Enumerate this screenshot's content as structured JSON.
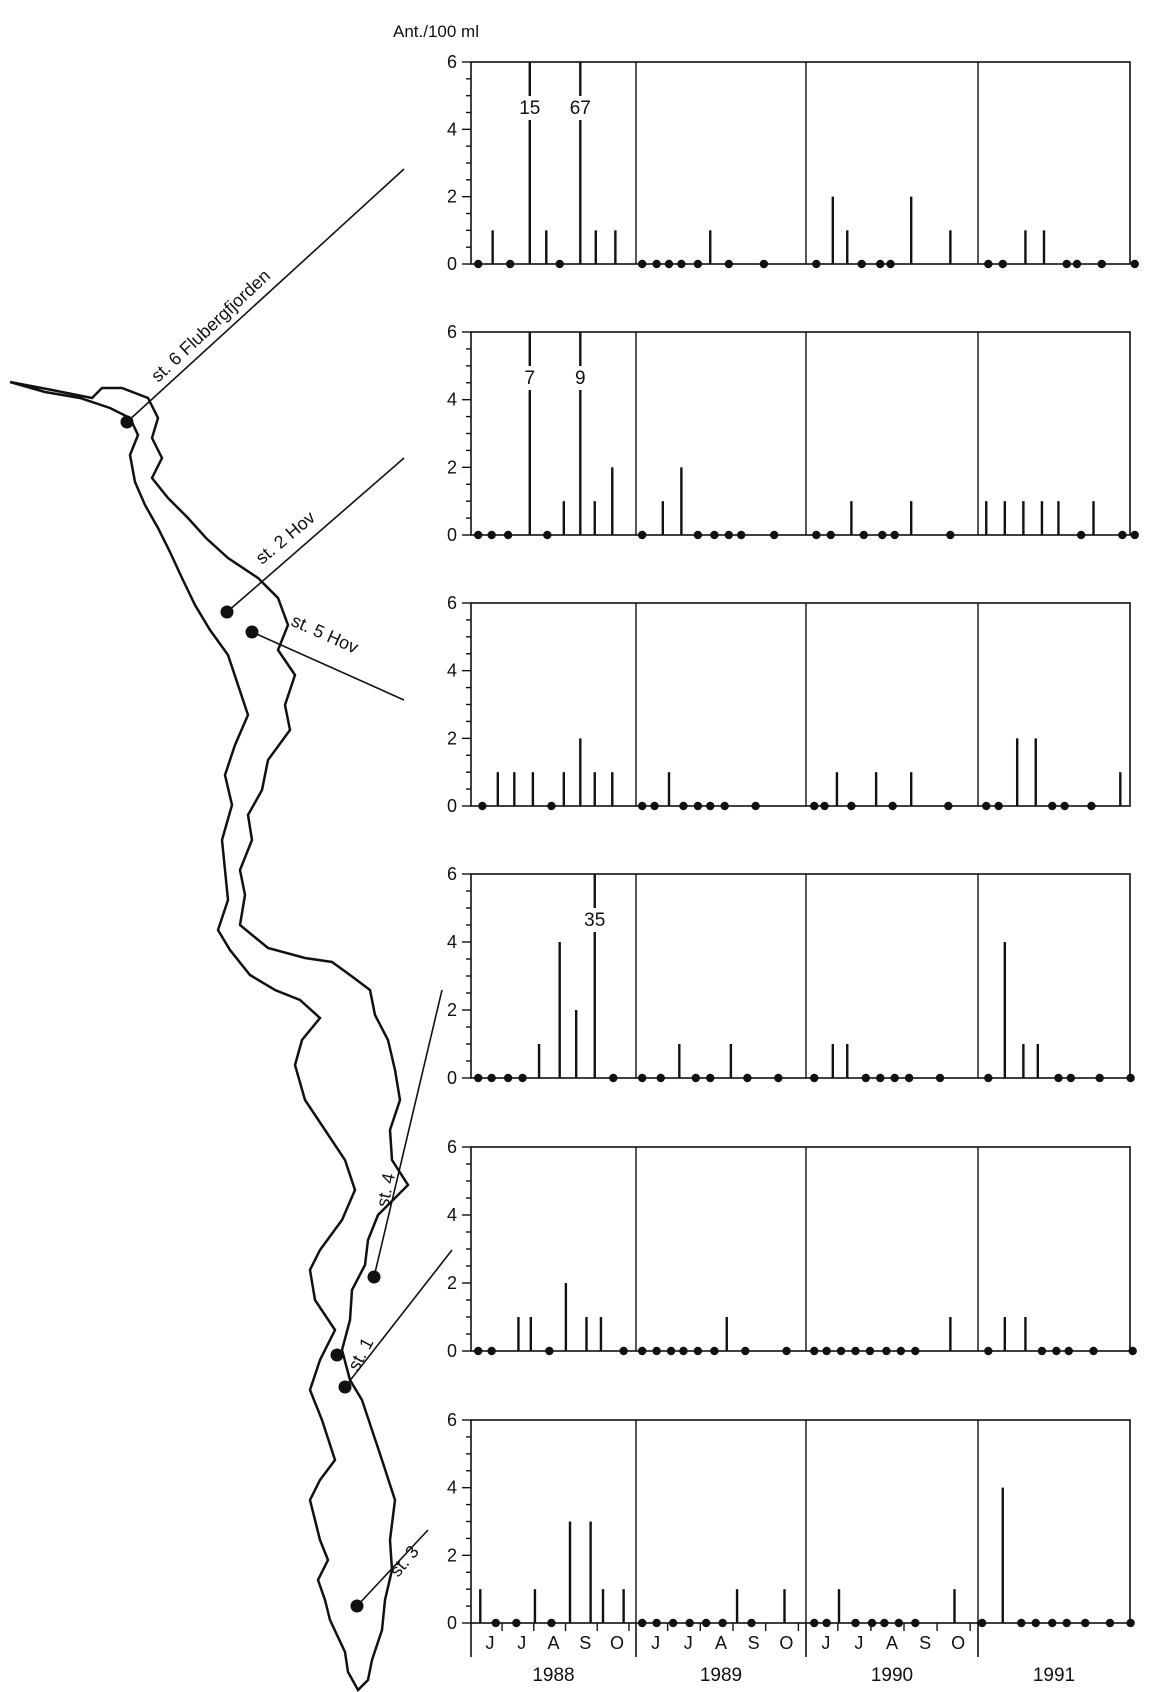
{
  "chart_data": {
    "type": "bar",
    "ylabel": "Ant./100 ml",
    "ylim": [
      0,
      6
    ],
    "yticks": [
      0,
      2,
      4,
      6
    ],
    "years": [
      {
        "label": "1988",
        "months": [
          "J",
          "J",
          "A",
          "S",
          "O"
        ]
      },
      {
        "label": "1989",
        "months": [
          "J",
          "J",
          "A",
          "S",
          "O"
        ]
      },
      {
        "label": "1990",
        "months": [
          "J",
          "J",
          "A",
          "S",
          "O"
        ]
      },
      {
        "label": "1991",
        "months": []
      }
    ],
    "panels": [
      {
        "station": "st. 6 Flubergfjorden",
        "samples": [
          [
            [
              0.35,
              0
            ],
            [
              1.05,
              1
            ],
            [
              1.9,
              0
            ],
            [
              2.85,
              15
            ],
            [
              3.65,
              1
            ],
            [
              4.3,
              0
            ],
            [
              5.3,
              67
            ],
            [
              6.05,
              1
            ],
            [
              7,
              1
            ]
          ],
          [
            [
              0.3,
              0
            ],
            [
              1.0,
              0
            ],
            [
              1.6,
              0
            ],
            [
              2.2,
              0
            ],
            [
              3.0,
              0
            ],
            [
              3.6,
              1
            ],
            [
              4.5,
              0
            ],
            [
              6.2,
              0
            ]
          ],
          [
            [
              0.5,
              0
            ],
            [
              1.3,
              2
            ],
            [
              2.0,
              1
            ],
            [
              2.7,
              0
            ],
            [
              3.6,
              0
            ],
            [
              4.1,
              0
            ],
            [
              5.1,
              2
            ],
            [
              7.0,
              1
            ]
          ],
          [
            [
              0.5,
              0
            ],
            [
              1.2,
              0
            ],
            [
              2.3,
              1
            ],
            [
              3.2,
              1
            ],
            [
              4.3,
              0
            ],
            [
              4.8,
              0
            ],
            [
              6.0,
              0
            ],
            [
              7.6,
              0
            ]
          ]
        ]
      },
      {
        "station": "st. 2 Hov",
        "samples": [
          [
            [
              0.35,
              0
            ],
            [
              1.0,
              0
            ],
            [
              1.8,
              0
            ],
            [
              2.85,
              7
            ],
            [
              3.7,
              0
            ],
            [
              4.5,
              1
            ],
            [
              5.3,
              9
            ],
            [
              6.0,
              1
            ],
            [
              6.85,
              2
            ]
          ],
          [
            [
              0.3,
              0
            ],
            [
              1.3,
              1
            ],
            [
              2.2,
              2
            ],
            [
              3.0,
              0
            ],
            [
              3.8,
              0
            ],
            [
              4.5,
              0
            ],
            [
              5.1,
              0
            ],
            [
              6.7,
              0
            ]
          ],
          [
            [
              0.5,
              0
            ],
            [
              1.2,
              0
            ],
            [
              2.2,
              1
            ],
            [
              2.8,
              0
            ],
            [
              3.7,
              0
            ],
            [
              4.3,
              0
            ],
            [
              5.1,
              1
            ],
            [
              7.0,
              0
            ]
          ],
          [
            [
              0.4,
              1
            ],
            [
              1.3,
              1
            ],
            [
              2.2,
              1
            ],
            [
              3.1,
              1
            ],
            [
              3.9,
              1
            ],
            [
              5.0,
              0
            ],
            [
              5.6,
              1
            ],
            [
              7.0,
              0
            ],
            [
              7.6,
              0
            ]
          ]
        ]
      },
      {
        "station": "st. 5 Hov",
        "samples": [
          [
            [
              0.55,
              0
            ],
            [
              1.3,
              1
            ],
            [
              2.1,
              1
            ],
            [
              3.0,
              1
            ],
            [
              3.9,
              0
            ],
            [
              4.5,
              1
            ],
            [
              5.3,
              2
            ],
            [
              6.0,
              1
            ],
            [
              6.85,
              1
            ]
          ],
          [
            [
              0.3,
              0
            ],
            [
              0.9,
              0
            ],
            [
              1.6,
              1
            ],
            [
              2.3,
              0
            ],
            [
              3.0,
              0
            ],
            [
              3.6,
              0
            ],
            [
              4.3,
              0
            ],
            [
              5.8,
              0
            ]
          ],
          [
            [
              0.4,
              0
            ],
            [
              0.9,
              0
            ],
            [
              1.5,
              1
            ],
            [
              2.2,
              0
            ],
            [
              3.4,
              1
            ],
            [
              4.2,
              0
            ],
            [
              5.1,
              1
            ],
            [
              6.9,
              0
            ]
          ],
          [
            [
              0.4,
              0
            ],
            [
              1.0,
              0
            ],
            [
              1.9,
              2
            ],
            [
              2.8,
              2
            ],
            [
              3.6,
              0
            ],
            [
              4.2,
              0
            ],
            [
              5.5,
              0
            ],
            [
              6.9,
              1
            ]
          ]
        ]
      },
      {
        "station": "st. 4",
        "samples": [
          [
            [
              0.35,
              0
            ],
            [
              1.0,
              0
            ],
            [
              1.8,
              0
            ],
            [
              2.5,
              0
            ],
            [
              3.3,
              1
            ],
            [
              4.3,
              4
            ],
            [
              5.1,
              2
            ],
            [
              6.0,
              35
            ],
            [
              6.9,
              0
            ]
          ],
          [
            [
              0.3,
              0
            ],
            [
              1.2,
              0
            ],
            [
              2.1,
              1
            ],
            [
              2.9,
              0
            ],
            [
              3.6,
              0
            ],
            [
              4.6,
              1
            ],
            [
              5.4,
              0
            ],
            [
              6.9,
              0
            ]
          ],
          [
            [
              0.4,
              0
            ],
            [
              1.3,
              1
            ],
            [
              2.0,
              1
            ],
            [
              2.9,
              0
            ],
            [
              3.6,
              0
            ],
            [
              4.3,
              0
            ],
            [
              5.0,
              0
            ],
            [
              6.5,
              0
            ]
          ],
          [
            [
              0.5,
              0
            ],
            [
              1.3,
              4
            ],
            [
              2.2,
              1
            ],
            [
              2.9,
              1
            ],
            [
              3.9,
              0
            ],
            [
              4.5,
              0
            ],
            [
              5.9,
              0
            ],
            [
              7.4,
              0
            ]
          ]
        ]
      },
      {
        "station": "st. 1",
        "samples": [
          [
            [
              0.35,
              0
            ],
            [
              1.0,
              0
            ],
            [
              2.3,
              1
            ],
            [
              2.9,
              1
            ],
            [
              3.8,
              0
            ],
            [
              4.6,
              2
            ],
            [
              5.6,
              1
            ],
            [
              6.3,
              1
            ],
            [
              7.4,
              0
            ]
          ],
          [
            [
              0.3,
              0
            ],
            [
              1.0,
              0
            ],
            [
              1.7,
              0
            ],
            [
              2.3,
              0
            ],
            [
              3.0,
              0
            ],
            [
              3.8,
              0
            ],
            [
              4.4,
              1
            ],
            [
              5.3,
              0
            ],
            [
              7.3,
              0
            ]
          ],
          [
            [
              0.4,
              0
            ],
            [
              1.0,
              0
            ],
            [
              1.7,
              0
            ],
            [
              2.4,
              0
            ],
            [
              3.1,
              0
            ],
            [
              3.9,
              0
            ],
            [
              4.6,
              0
            ],
            [
              5.3,
              0
            ],
            [
              7.0,
              1
            ]
          ],
          [
            [
              0.5,
              0
            ],
            [
              1.3,
              1
            ],
            [
              2.3,
              1
            ],
            [
              3.1,
              0
            ],
            [
              3.8,
              0
            ],
            [
              4.4,
              0
            ],
            [
              5.6,
              0
            ],
            [
              7.5,
              0
            ]
          ]
        ]
      },
      {
        "station": "st. 3",
        "samples": [
          [
            [
              0.45,
              1
            ],
            [
              1.2,
              0
            ],
            [
              2.2,
              0
            ],
            [
              3.1,
              1
            ],
            [
              3.9,
              0
            ],
            [
              4.8,
              3
            ],
            [
              5.8,
              3
            ],
            [
              6.4,
              1
            ],
            [
              7.4,
              1
            ]
          ],
          [
            [
              0.3,
              0
            ],
            [
              1.0,
              0
            ],
            [
              1.8,
              0
            ],
            [
              2.6,
              0
            ],
            [
              3.4,
              0
            ],
            [
              4.2,
              0
            ],
            [
              4.9,
              1
            ],
            [
              5.6,
              0
            ],
            [
              7.2,
              1
            ]
          ],
          [
            [
              0.4,
              0
            ],
            [
              1.0,
              0
            ],
            [
              1.6,
              1
            ],
            [
              2.4,
              0
            ],
            [
              3.2,
              0
            ],
            [
              3.8,
              0
            ],
            [
              4.5,
              0
            ],
            [
              5.3,
              0
            ],
            [
              7.2,
              1
            ]
          ],
          [
            [
              0.2,
              0
            ],
            [
              1.2,
              4
            ],
            [
              2.1,
              0
            ],
            [
              2.8,
              0
            ],
            [
              3.6,
              0
            ],
            [
              4.3,
              0
            ],
            [
              5.2,
              0
            ],
            [
              6.4,
              0
            ],
            [
              7.4,
              0
            ]
          ]
        ]
      }
    ]
  }
}
